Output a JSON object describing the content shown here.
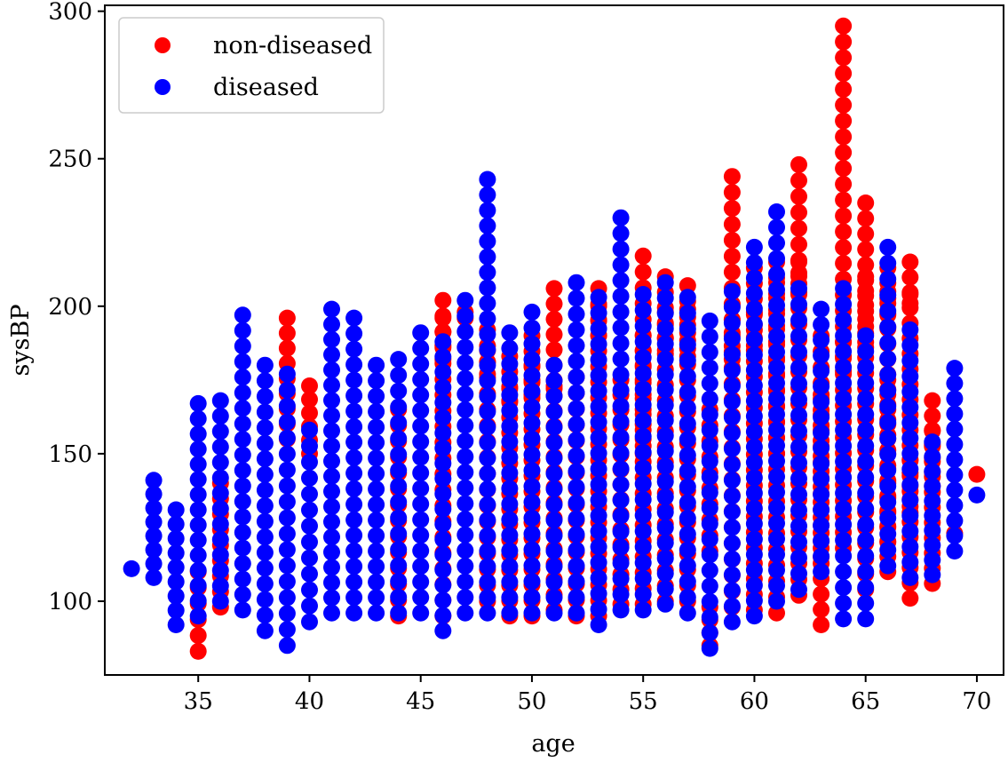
{
  "chart_data": {
    "type": "scatter",
    "title": "",
    "xlabel": "age",
    "ylabel": "sysBP",
    "xlim": [
      30.8,
      71.2
    ],
    "ylim": [
      75,
      302
    ],
    "xticks": [
      35,
      40,
      45,
      50,
      55,
      60,
      65,
      70
    ],
    "yticks": [
      100,
      150,
      200,
      250,
      300
    ],
    "grid": false,
    "legend": {
      "placement": "top-left",
      "entries": [
        "non-diseased",
        "diseased"
      ]
    },
    "series": [
      {
        "name": "non-diseased",
        "color": "#ff0000",
        "columns": [
          [
            35,
            83,
            110
          ],
          [
            36,
            98,
            140
          ],
          [
            39,
            196,
            155
          ],
          [
            40,
            173,
            150
          ],
          [
            44,
            95,
            165
          ],
          [
            46,
            95,
            202
          ],
          [
            46,
            182,
            196
          ],
          [
            47,
            196,
            198
          ],
          [
            48,
            100,
            192
          ],
          [
            48,
            177,
            185
          ],
          [
            49,
            95,
            183
          ],
          [
            49,
            168,
            172
          ],
          [
            50,
            95,
            190
          ],
          [
            50,
            180,
            170
          ],
          [
            51,
            97,
            206
          ],
          [
            51,
            173,
            172
          ],
          [
            52,
            95,
            176
          ],
          [
            53,
            95,
            206
          ],
          [
            53,
            200,
            190
          ],
          [
            54,
            99,
            175
          ],
          [
            55,
            99,
            217
          ],
          [
            55,
            190,
            150
          ],
          [
            56,
            100,
            210
          ],
          [
            56,
            198,
            185
          ],
          [
            57,
            100,
            207
          ],
          [
            57,
            199,
            183
          ],
          [
            58,
            85,
            98
          ],
          [
            58,
            117,
            165
          ],
          [
            59,
            98,
            244
          ],
          [
            59,
            200,
            182
          ],
          [
            60,
            97,
            213
          ],
          [
            60,
            198,
            185
          ],
          [
            61,
            96,
            215
          ],
          [
            61,
            208,
            150
          ],
          [
            62,
            102,
            248
          ],
          [
            62,
            215,
            204
          ],
          [
            63,
            92,
            170
          ],
          [
            63,
            115,
            190
          ],
          [
            64,
            118,
            295
          ],
          [
            64,
            188,
            178
          ],
          [
            65,
            104,
            235
          ],
          [
            65,
            210,
            186
          ],
          [
            66,
            110,
            213
          ],
          [
            66,
            205,
            193
          ],
          [
            66,
            175,
            120
          ],
          [
            67,
            101,
            215
          ],
          [
            67,
            204,
            201
          ],
          [
            67,
            148,
            130
          ],
          [
            68,
            106,
            168
          ],
          [
            68,
            158,
            139
          ],
          [
            69,
            123,
            123
          ],
          [
            70,
            143,
            143
          ]
        ]
      },
      {
        "name": "diseased",
        "color": "#0000ff",
        "columns": [
          [
            32,
            111,
            111
          ],
          [
            33,
            108,
            141
          ],
          [
            34,
            92,
            131
          ],
          [
            35,
            95,
            167
          ],
          [
            36,
            100,
            168
          ],
          [
            37,
            97,
            197
          ],
          [
            38,
            90,
            180
          ],
          [
            39,
            85,
            177
          ],
          [
            40,
            93,
            158
          ],
          [
            41,
            96,
            199
          ],
          [
            42,
            96,
            196
          ],
          [
            43,
            96,
            180
          ],
          [
            44,
            96,
            182
          ],
          [
            45,
            96,
            191
          ],
          [
            46,
            90,
            188
          ],
          [
            47,
            96,
            202
          ],
          [
            48,
            96,
            243
          ],
          [
            49,
            96,
            191
          ],
          [
            50,
            96,
            198
          ],
          [
            51,
            96,
            180
          ],
          [
            52,
            96,
            208
          ],
          [
            53,
            92,
            203
          ],
          [
            54,
            97,
            230
          ],
          [
            55,
            97,
            204
          ],
          [
            56,
            99,
            208
          ],
          [
            57,
            96,
            203
          ],
          [
            58,
            84,
            195
          ],
          [
            59,
            93,
            205
          ],
          [
            60,
            95,
            220
          ],
          [
            61,
            100,
            232
          ],
          [
            62,
            104,
            206
          ],
          [
            63,
            110,
            199
          ],
          [
            64,
            94,
            206
          ],
          [
            65,
            94,
            190
          ],
          [
            66,
            112,
            220
          ],
          [
            67,
            108,
            192
          ],
          [
            68,
            109,
            154
          ],
          [
            69,
            117,
            179
          ],
          [
            70,
            136,
            136
          ]
        ]
      }
    ]
  }
}
